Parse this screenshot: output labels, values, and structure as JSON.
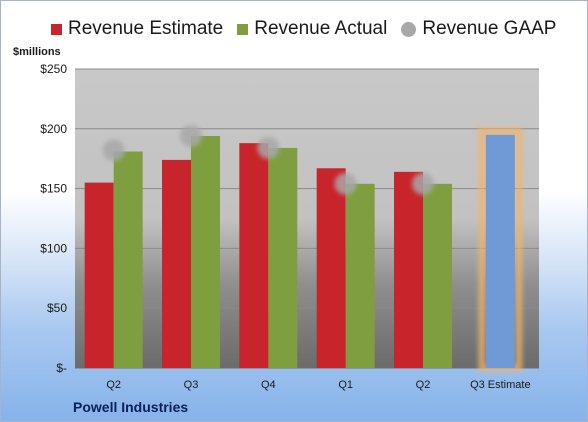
{
  "colors": {
    "estimate": "#c8242b",
    "actual": "#7f9e3f",
    "gaap": "#a8a8a8",
    "forecast": "#6f9ad6",
    "forecast_glow": "#f2b36b"
  },
  "legend": [
    {
      "label": "Revenue Estimate",
      "icon": "red-square"
    },
    {
      "label": "Revenue Actual",
      "icon": "green-square"
    },
    {
      "label": "Revenue GAAP",
      "icon": "grey-circle"
    }
  ],
  "footer": {
    "title": "Powell Industries"
  },
  "chart_data": {
    "type": "bar",
    "unit_label": "$millions",
    "categories": [
      "Q2",
      "Q3",
      "Q4",
      "Q1",
      "Q2",
      "Q3 Estimate"
    ],
    "series": [
      {
        "name": "Revenue Estimate",
        "values": [
          155,
          174,
          188,
          167,
          164,
          null
        ]
      },
      {
        "name": "Revenue Actual",
        "values": [
          181,
          194,
          184,
          154,
          154,
          195
        ]
      },
      {
        "name": "Revenue GAAP",
        "type": "scatter",
        "values": [
          182,
          194,
          184,
          154,
          154,
          null
        ]
      }
    ],
    "highlighted_category": "Q3 Estimate",
    "ylim": [
      0,
      250
    ],
    "yticks": [
      {
        "value": 0,
        "label": "$-"
      },
      {
        "value": 50,
        "label": "$50"
      },
      {
        "value": 100,
        "label": "$100"
      },
      {
        "value": 150,
        "label": "$150"
      },
      {
        "value": 200,
        "label": "$200"
      },
      {
        "value": 250,
        "label": "$250"
      }
    ],
    "grid": true,
    "legend_position": "top"
  }
}
